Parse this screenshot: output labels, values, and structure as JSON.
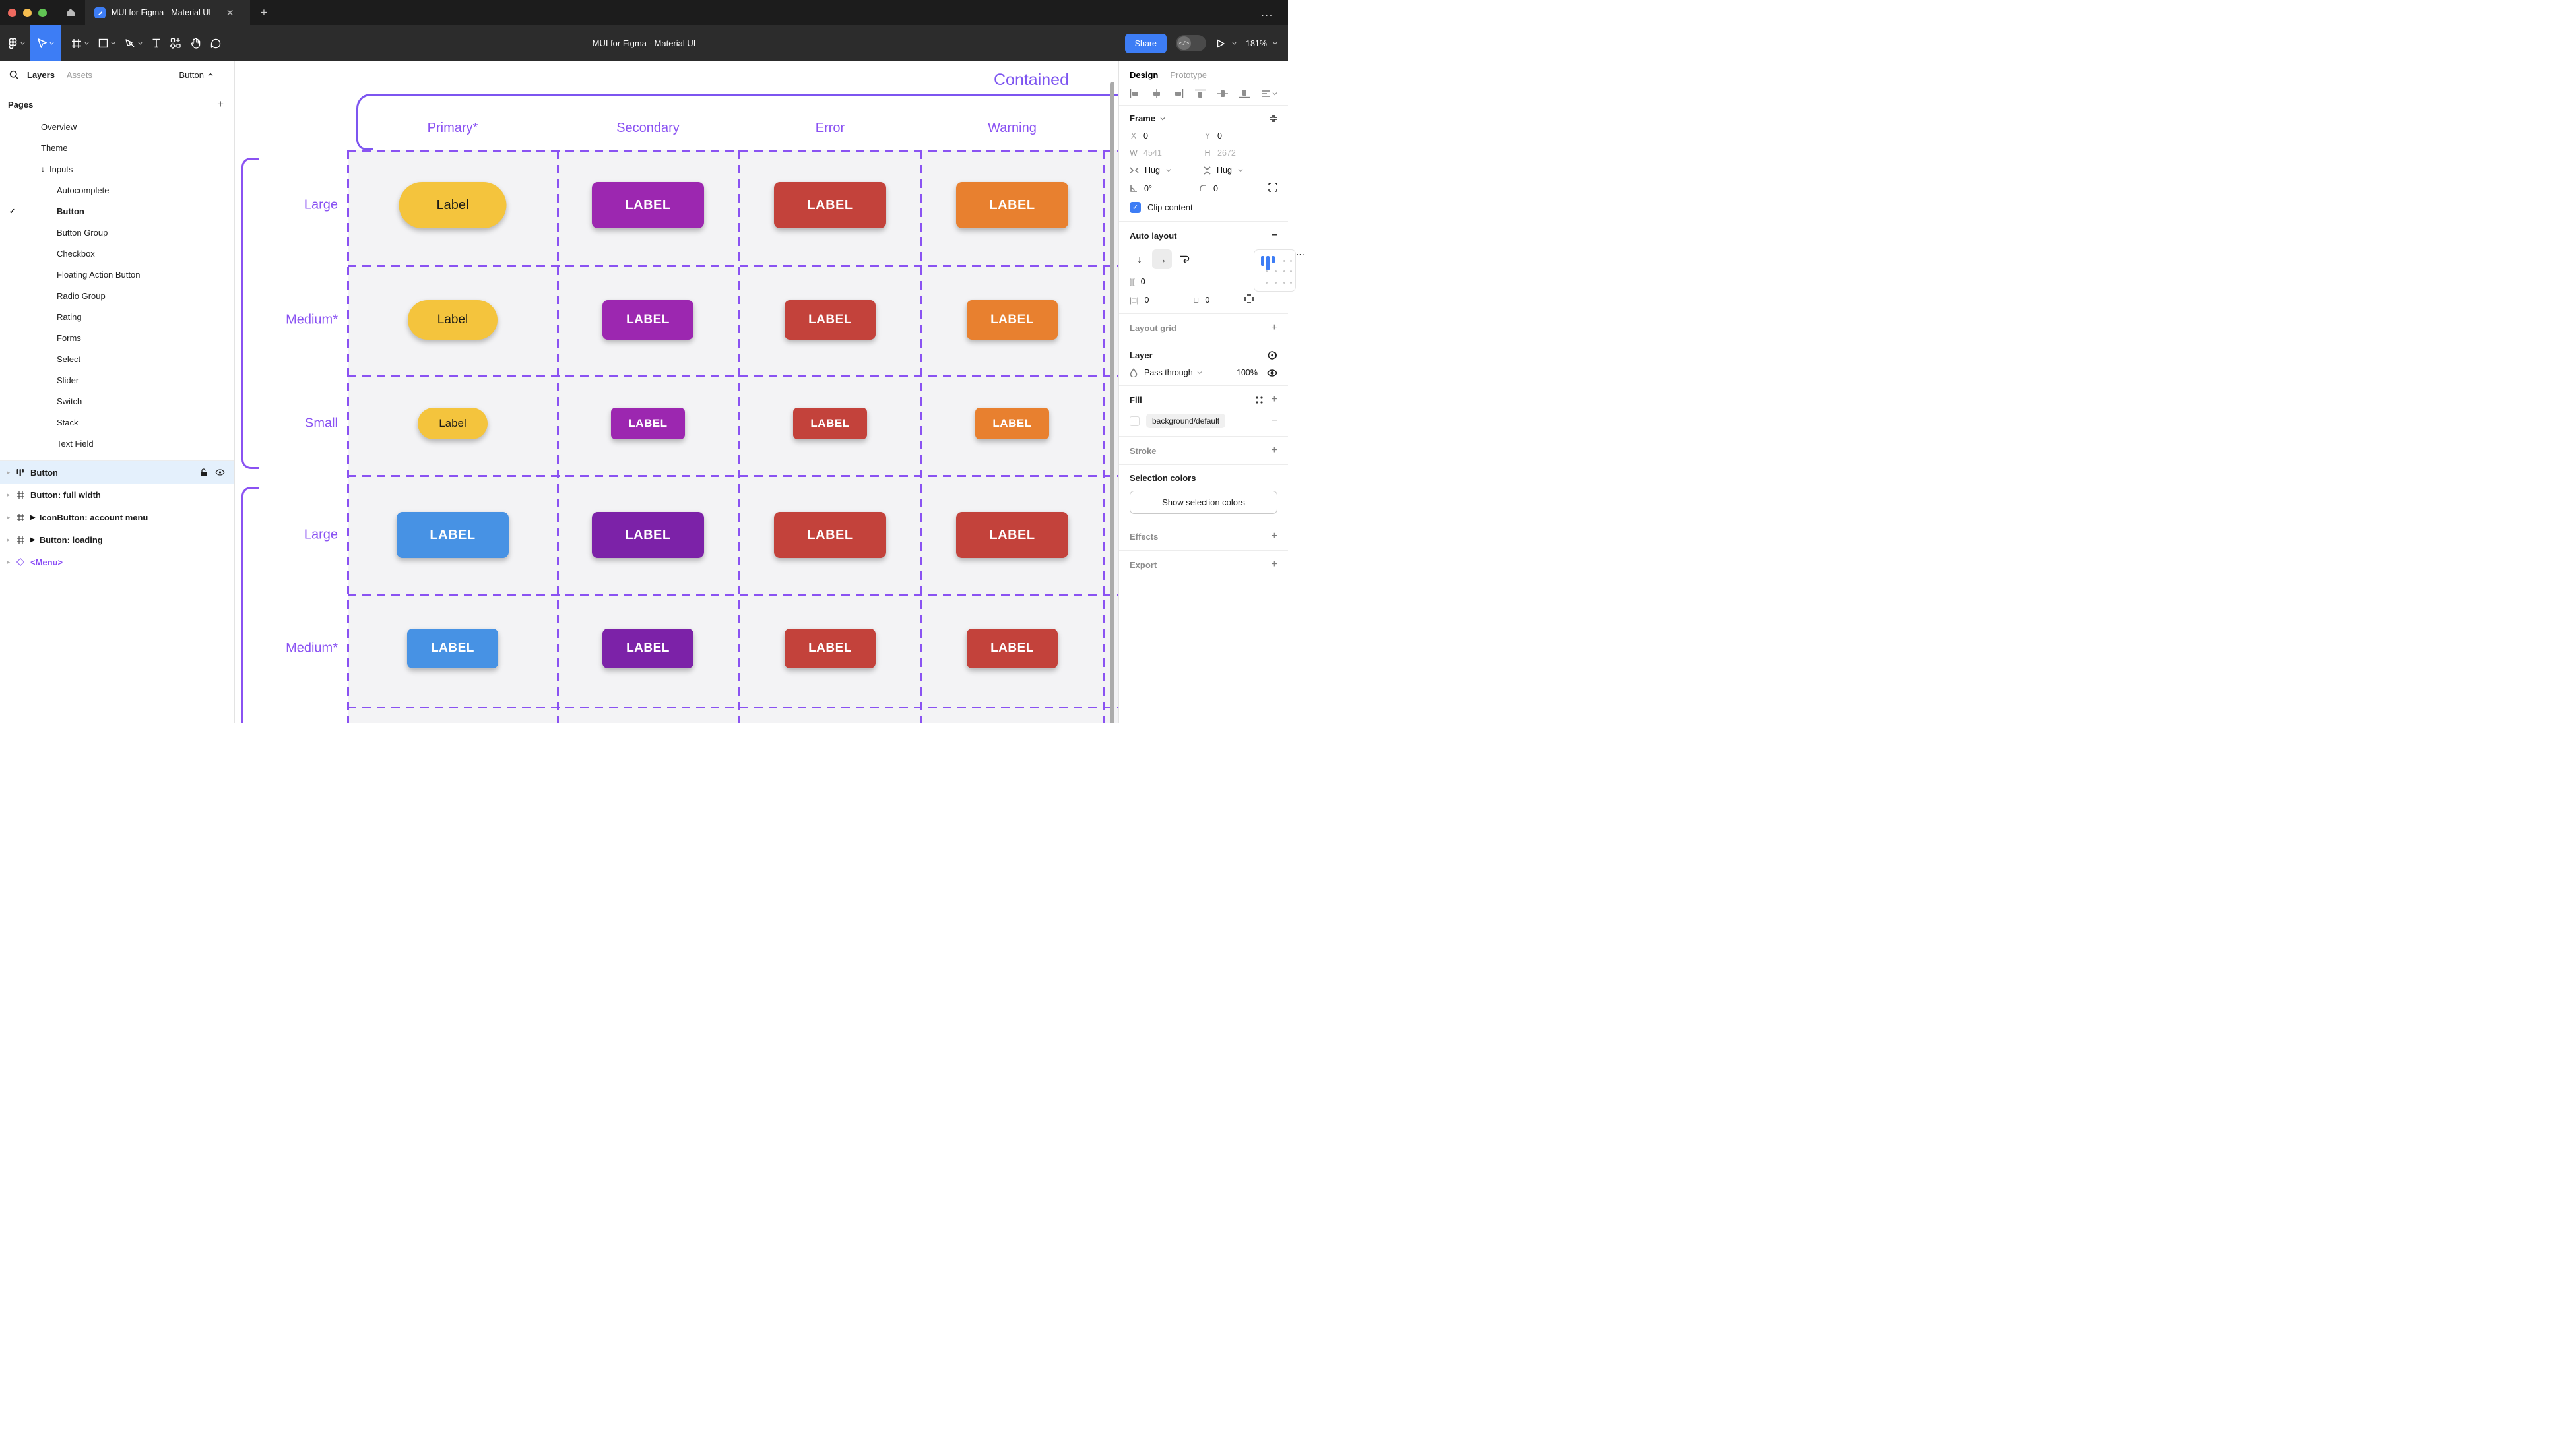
{
  "window": {
    "tab_title": "MUI for Figma - Material UI",
    "toolbar_title": "MUI for Figma - Material UI",
    "share_label": "Share",
    "zoom_level": "181%",
    "more_icon": "...",
    "accent_blue": "#3d7df5"
  },
  "sidebar": {
    "tabs": {
      "layers": "Layers",
      "assets": "Assets"
    },
    "scope_selector": "Button",
    "pages_header": "Pages",
    "pages": [
      {
        "label": "Overview",
        "indent": 1
      },
      {
        "label": "Theme",
        "indent": 1
      },
      {
        "label": "Inputs",
        "indent": 1,
        "prefix": "arrow-down"
      },
      {
        "label": "Autocomplete",
        "indent": 2
      },
      {
        "label": "Button",
        "indent": 2,
        "current": true
      },
      {
        "label": "Button Group",
        "indent": 2
      },
      {
        "label": "Checkbox",
        "indent": 2
      },
      {
        "label": "Floating Action Button",
        "indent": 2
      },
      {
        "label": "Radio Group",
        "indent": 2
      },
      {
        "label": "Rating",
        "indent": 2
      },
      {
        "label": "Forms",
        "indent": 2
      },
      {
        "label": "Select",
        "indent": 2
      },
      {
        "label": "Slider",
        "indent": 2
      },
      {
        "label": "Switch",
        "indent": 2
      },
      {
        "label": "Stack",
        "indent": 2
      },
      {
        "label": "Text Field",
        "indent": 2
      }
    ],
    "layers": [
      {
        "label": "Button",
        "icon": "auto-layout",
        "selected": true,
        "lock": "unlocked",
        "visible": true
      },
      {
        "label": "Button: full width",
        "icon": "frame"
      },
      {
        "label": "IconButton: account menu",
        "icon": "frame",
        "interactive": true
      },
      {
        "label": "Button: loading",
        "icon": "frame",
        "interactive": true
      },
      {
        "label": "<Menu>",
        "icon": "instance",
        "purple": true
      }
    ]
  },
  "canvas": {
    "frame_title": "Contained",
    "purple": "#8a52f2",
    "columns": [
      "Primary*",
      "Secondary",
      "Error",
      "Warning"
    ],
    "rows": [
      {
        "label": "Large",
        "group": 1,
        "buttons": [
          {
            "text": "Label",
            "bg": "#f4c43d",
            "fg": "#1c1b17",
            "shape": "pill",
            "size": "large"
          },
          {
            "text": "LABEL",
            "bg": "#9c27b0",
            "fg": "#ffffff",
            "shape": "rect",
            "size": "large"
          },
          {
            "text": "LABEL",
            "bg": "#c3423b",
            "fg": "#ffffff",
            "shape": "rect",
            "size": "large"
          },
          {
            "text": "LABEL",
            "bg": "#e8802f",
            "fg": "#ffffff",
            "shape": "rect",
            "size": "large"
          }
        ]
      },
      {
        "label": "Medium*",
        "group": 1,
        "buttons": [
          {
            "text": "Label",
            "bg": "#f4c43d",
            "fg": "#1c1b17",
            "shape": "pill",
            "size": "medium"
          },
          {
            "text": "LABEL",
            "bg": "#9c27b0",
            "fg": "#ffffff",
            "shape": "rect",
            "size": "medium"
          },
          {
            "text": "LABEL",
            "bg": "#c3423b",
            "fg": "#ffffff",
            "shape": "rect",
            "size": "medium"
          },
          {
            "text": "LABEL",
            "bg": "#e8802f",
            "fg": "#ffffff",
            "shape": "rect",
            "size": "medium"
          }
        ]
      },
      {
        "label": "Small",
        "group": 1,
        "buttons": [
          {
            "text": "Label",
            "bg": "#f4c43d",
            "fg": "#1c1b17",
            "shape": "pill",
            "size": "small"
          },
          {
            "text": "LABEL",
            "bg": "#9c27b0",
            "fg": "#ffffff",
            "shape": "rect",
            "size": "small"
          },
          {
            "text": "LABEL",
            "bg": "#c3423b",
            "fg": "#ffffff",
            "shape": "rect",
            "size": "small"
          },
          {
            "text": "LABEL",
            "bg": "#e8802f",
            "fg": "#ffffff",
            "shape": "rect",
            "size": "small"
          }
        ]
      },
      {
        "label": "Large",
        "group": 2,
        "buttons": [
          {
            "text": "LABEL",
            "bg": "#4792e4",
            "fg": "#ffffff",
            "shape": "rect",
            "size": "large"
          },
          {
            "text": "LABEL",
            "bg": "#7c22a8",
            "fg": "#ffffff",
            "shape": "rect",
            "size": "large"
          },
          {
            "text": "LABEL",
            "bg": "#c3423b",
            "fg": "#ffffff",
            "shape": "rect",
            "size": "large"
          },
          {
            "text": "LABEL",
            "bg": "#c3423b",
            "fg": "#ffffff",
            "shape": "rect",
            "size": "large"
          }
        ]
      },
      {
        "label": "Medium*",
        "group": 2,
        "buttons": [
          {
            "text": "LABEL",
            "bg": "#4792e4",
            "fg": "#ffffff",
            "shape": "rect",
            "size": "medium"
          },
          {
            "text": "LABEL",
            "bg": "#7c22a8",
            "fg": "#ffffff",
            "shape": "rect",
            "size": "medium"
          },
          {
            "text": "LABEL",
            "bg": "#c3423b",
            "fg": "#ffffff",
            "shape": "rect",
            "size": "medium"
          },
          {
            "text": "LABEL",
            "bg": "#c3423b",
            "fg": "#ffffff",
            "shape": "rect",
            "size": "medium"
          }
        ]
      }
    ]
  },
  "panel": {
    "tabs": {
      "design": "Design",
      "prototype": "Prototype"
    },
    "frame": {
      "title": "Frame",
      "x_label": "X",
      "x": "0",
      "y_label": "Y",
      "y": "0",
      "w_label": "W",
      "w": "4541",
      "h_label": "H",
      "h": "2672",
      "hug_h": "Hug",
      "hug_v": "Hug",
      "rotation": "0°",
      "corner_radius": "0",
      "clip_label": "Clip content",
      "clip_checked": true
    },
    "auto_layout": {
      "title": "Auto layout",
      "gap": "0",
      "padding_h": "0",
      "padding_v": "0"
    },
    "layout_grid": {
      "title": "Layout grid"
    },
    "layer": {
      "title": "Layer",
      "blend_mode": "Pass through",
      "opacity": "100%"
    },
    "fill": {
      "title": "Fill",
      "value": "background/default"
    },
    "stroke": {
      "title": "Stroke"
    },
    "selection_colors": {
      "title": "Selection colors",
      "button_label": "Show selection colors"
    },
    "effects": {
      "title": "Effects"
    },
    "export": {
      "title": "Export"
    }
  }
}
